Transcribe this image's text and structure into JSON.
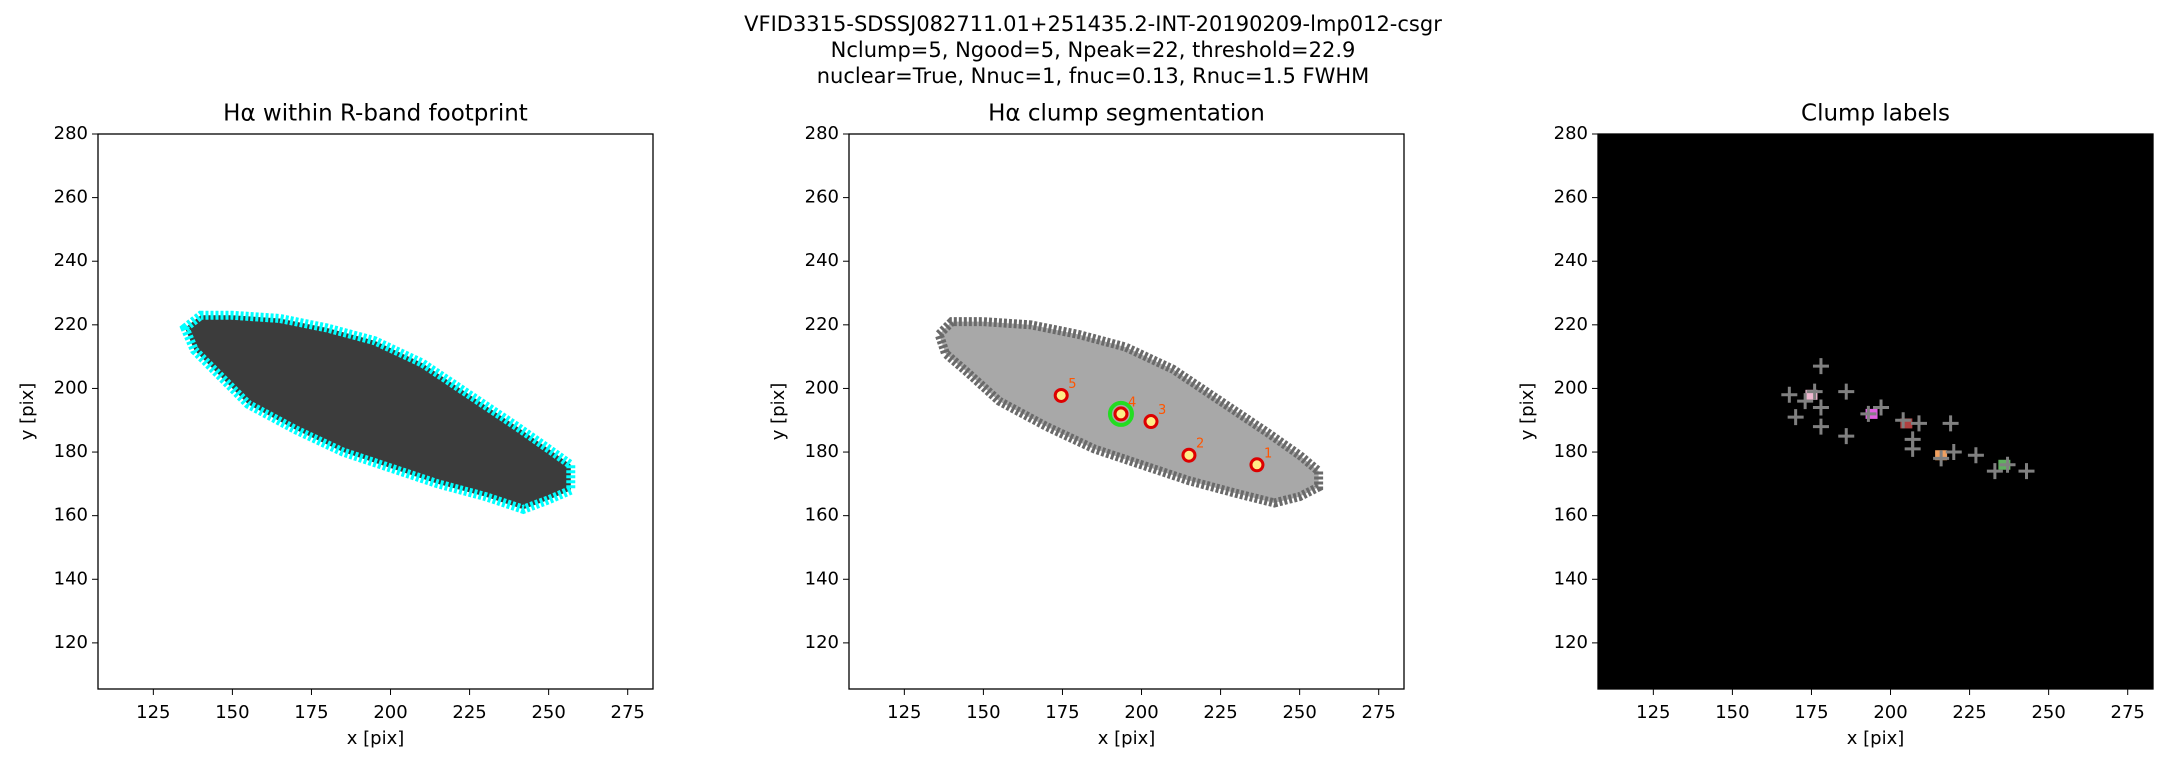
{
  "title": [
    "VFID3315-SDSSJ082711.01+251435.2-INT-20190209-lmp012-csgr",
    "Nclump=5, Ngood=5, Npeak=22, threshold=22.9",
    "nuclear=True, Nnuc=1, fnuc=0.13, Rnuc=1.5 FWHM"
  ],
  "chart_data": [
    {
      "type": "image",
      "title": "Hα within R-band footprint",
      "xlabel": "x [pix]",
      "ylabel": "y [pix]",
      "xlim": [
        107.5,
        283
      ],
      "ylim": [
        105.5,
        280
      ],
      "xticks": [
        125,
        150,
        175,
        200,
        225,
        250,
        275
      ],
      "yticks": [
        120,
        140,
        160,
        180,
        200,
        220,
        240,
        260,
        280
      ],
      "footprint": {
        "x": [
          135,
          140,
          150,
          165,
          180,
          195,
          210,
          225,
          240,
          250,
          257,
          257,
          250,
          242,
          230,
          215,
          200,
          185,
          170,
          155,
          145,
          138
        ],
        "y": [
          219,
          223,
          223,
          222,
          219,
          215,
          208,
          198,
          188,
          181,
          176,
          168,
          165,
          162,
          166,
          170,
          175,
          180,
          187,
          195,
          205,
          212
        ],
        "fill": "#3c3c3c",
        "edge_color": "#00ffff"
      }
    },
    {
      "type": "scatter",
      "title": "Hα clump segmentation",
      "xlabel": "x [pix]",
      "ylabel": "y [pix]",
      "xlim": [
        107.5,
        283
      ],
      "ylim": [
        105.5,
        280
      ],
      "xticks": [
        125,
        150,
        175,
        200,
        225,
        250,
        275
      ],
      "yticks": [
        120,
        140,
        160,
        180,
        200,
        220,
        240,
        260,
        280
      ],
      "footprint": {
        "x": [
          136,
          140,
          150,
          165,
          180,
          195,
          210,
          225,
          240,
          250,
          256,
          256,
          250,
          242,
          230,
          215,
          200,
          185,
          170,
          155,
          145,
          138
        ],
        "y": [
          217,
          221,
          221,
          220,
          217,
          213,
          206,
          196,
          186,
          179,
          174,
          169,
          166,
          164,
          167,
          171,
          176,
          181,
          188,
          196,
          205,
          211
        ],
        "fill": "#a8a8a8",
        "edge_color": "#6a6a6a"
      },
      "series": [
        {
          "marker": "big-ring",
          "color": "#22dd22",
          "x": [
            193.5
          ],
          "y": [
            192
          ]
        },
        {
          "marker": "ring",
          "color": "#dd0000",
          "label_color": "#ff5500",
          "x": [
            236.5,
            215,
            203,
            193.5,
            174.6
          ],
          "y": [
            176,
            179,
            189.6,
            192,
            197.8
          ],
          "point_labels": [
            "1",
            "2",
            "3",
            "4",
            "5"
          ]
        }
      ]
    },
    {
      "type": "scatter",
      "title": "Clump labels",
      "xlabel": "x [pix]",
      "ylabel": "y [pix]",
      "background": "#000000",
      "xlim": [
        107.5,
        283
      ],
      "ylim": [
        105.5,
        280
      ],
      "xticks": [
        125,
        150,
        175,
        200,
        225,
        250,
        275
      ],
      "yticks": [
        120,
        140,
        160,
        180,
        200,
        220,
        240,
        260,
        280
      ],
      "series": [
        {
          "marker": "square",
          "colors": [
            "#f0b8d0",
            "#e060e0",
            "#b04040",
            "#f0a060",
            "#60b060"
          ],
          "x": [
            175,
            194,
            205,
            216,
            236
          ],
          "y": [
            198,
            192,
            189,
            179,
            176
          ]
        },
        {
          "marker": "plus",
          "color": "#808080",
          "x": [
            168,
            170,
            173,
            176,
            178,
            178,
            178,
            186,
            186,
            193,
            197,
            204,
            207,
            207,
            209,
            216,
            219,
            220,
            227,
            233,
            237,
            243
          ],
          "y": [
            198,
            191,
            196,
            199,
            207,
            194,
            188,
            199,
            185,
            192,
            194,
            190,
            181,
            184,
            189,
            178,
            189,
            180,
            179,
            174,
            176,
            174
          ]
        }
      ]
    }
  ]
}
